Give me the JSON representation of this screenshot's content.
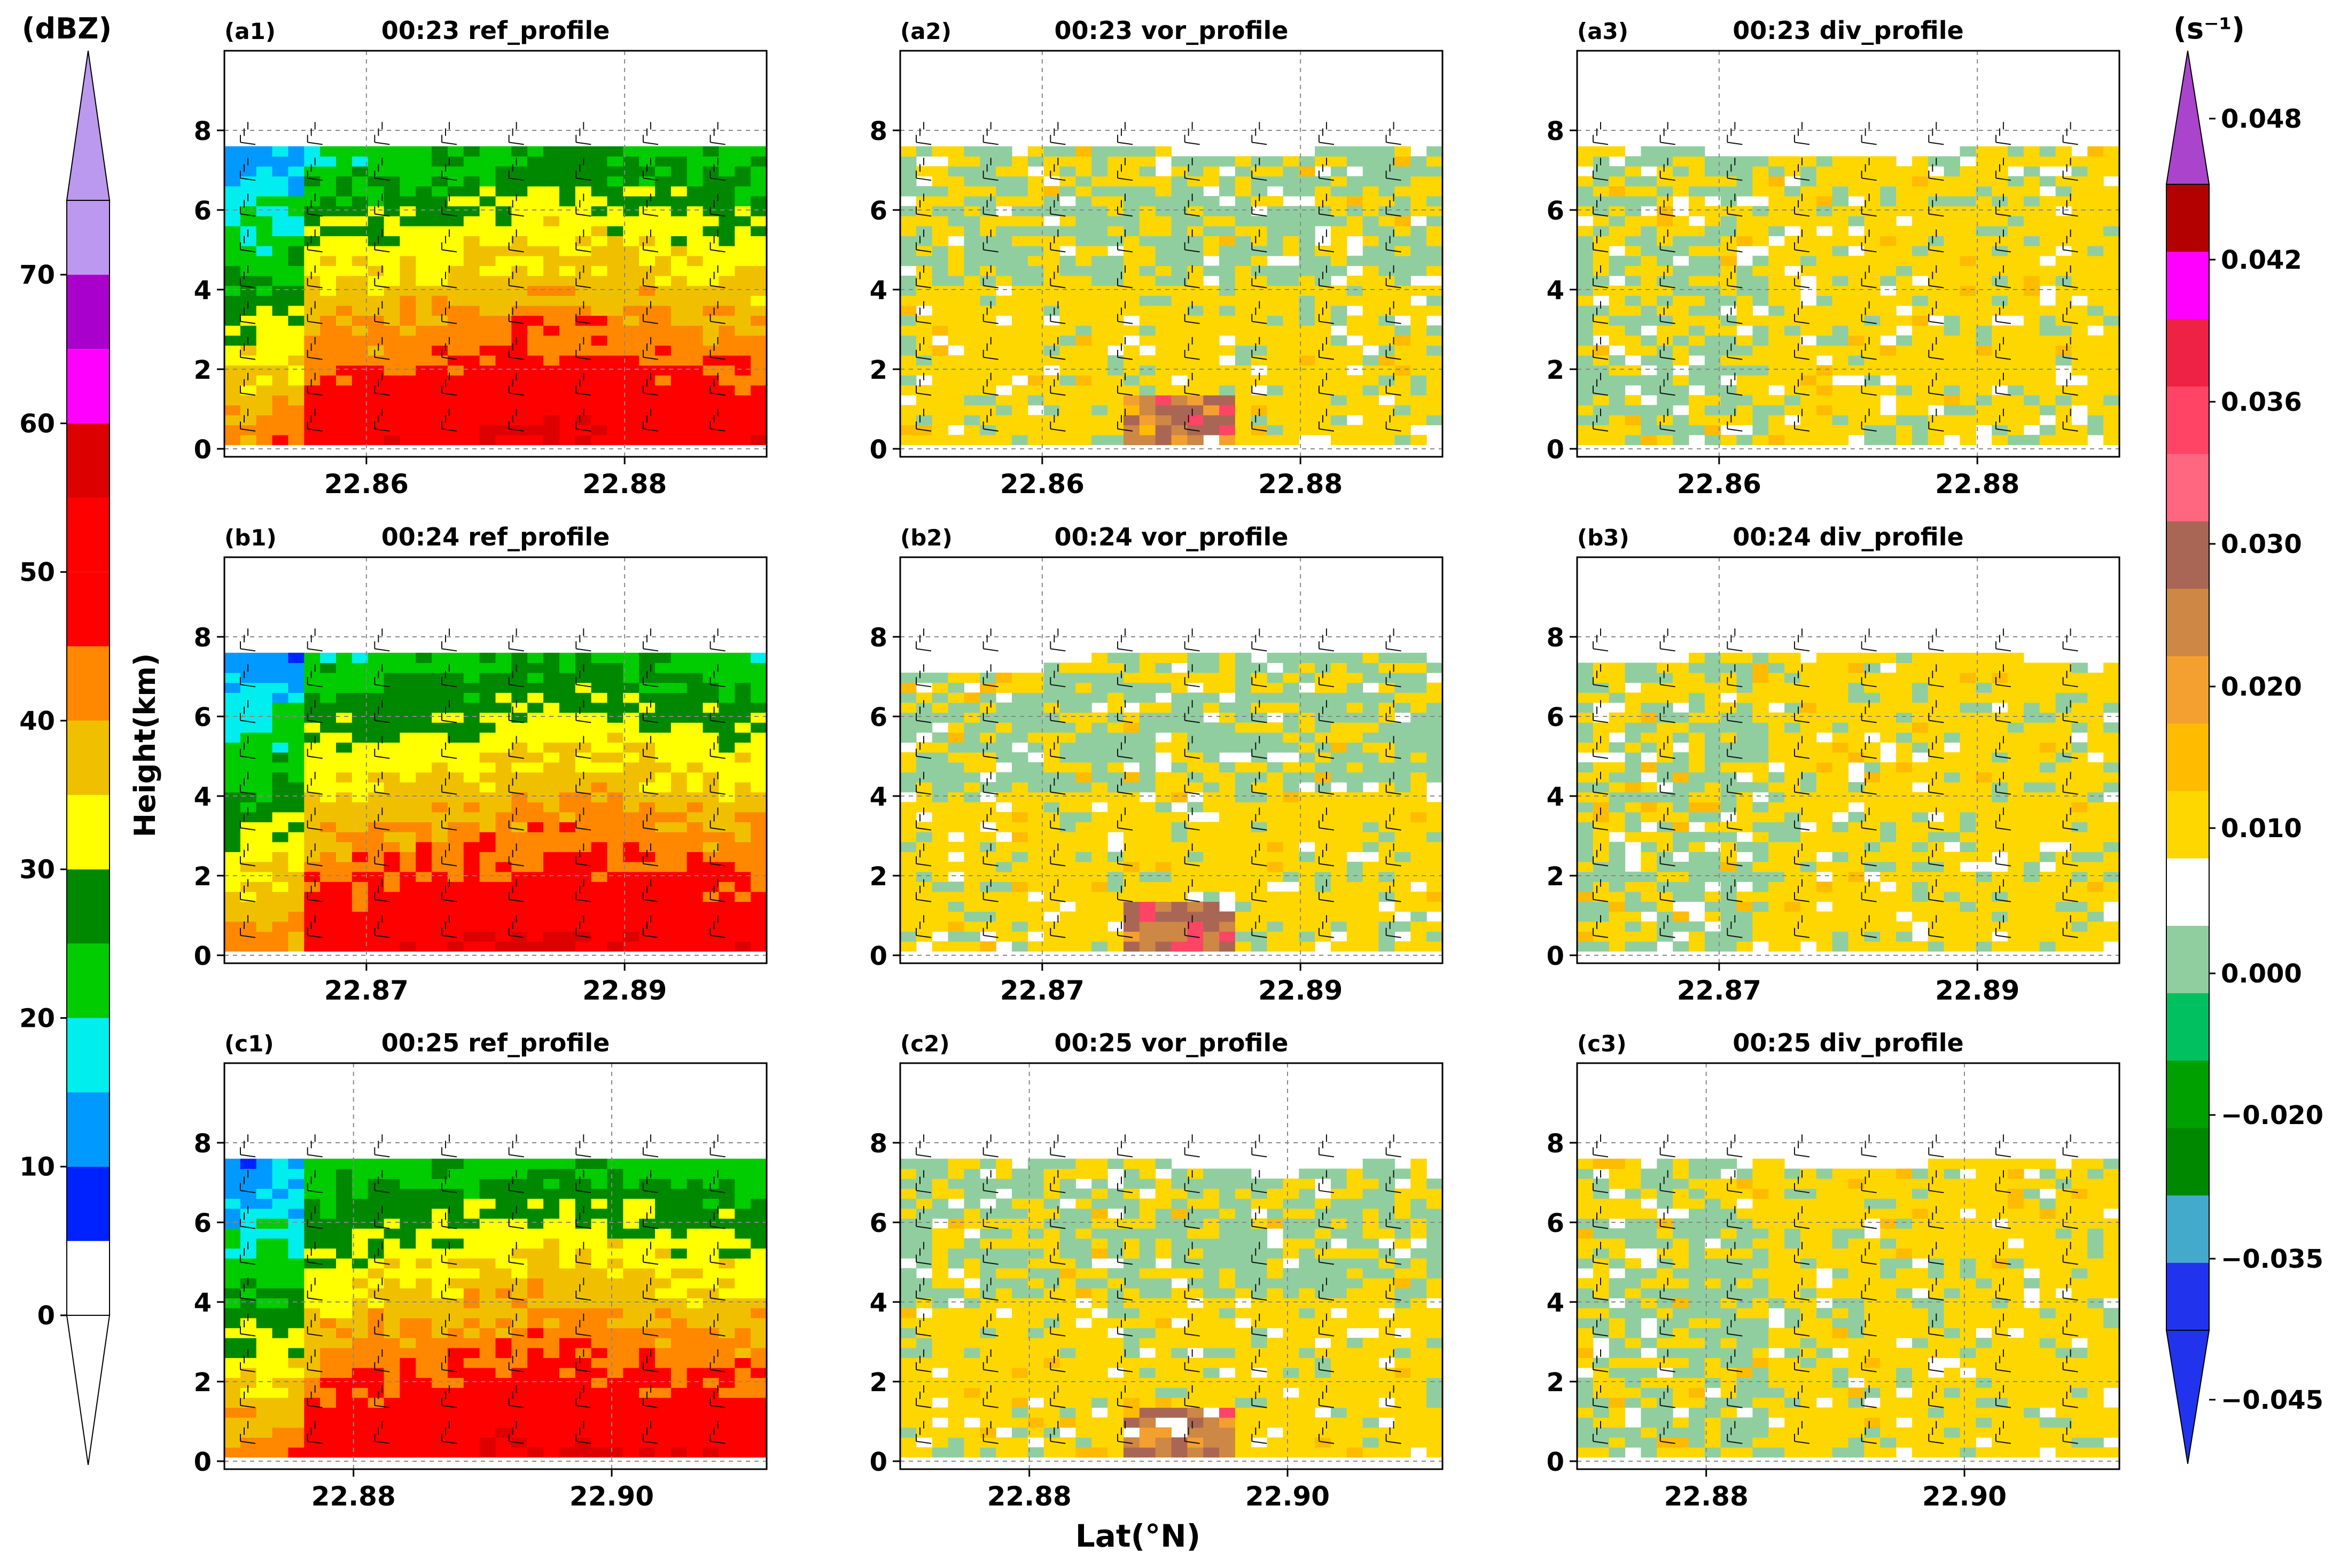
{
  "figure": {
    "left_colorbar_unit": "(dBZ)",
    "right_colorbar_unit": "(s⁻¹)",
    "ylabel": "Height(km)",
    "xlabel": "Lat(°N)"
  },
  "left_colorbar": {
    "tick_labels": [
      "0",
      "10",
      "20",
      "30",
      "40",
      "50",
      "60",
      "70"
    ],
    "tick_values": [
      0,
      10,
      20,
      30,
      40,
      50,
      60,
      70
    ],
    "range": [
      0,
      75
    ],
    "bounds": [
      0,
      5,
      10,
      15,
      20,
      25,
      30,
      35,
      40,
      45,
      50,
      55,
      60,
      65,
      70,
      75
    ],
    "colors": [
      "#ffffff",
      "#0022ff",
      "#0099ff",
      "#00eeee",
      "#00cc00",
      "#008800",
      "#ffff00",
      "#f0c000",
      "#ff8800",
      "#ff0000",
      "#ff0000",
      "#dd0000",
      "#ff00ff",
      "#aa00cc",
      "#bb99ee"
    ],
    "extend_top_color": "#bb99ee",
    "extend_bottom_color": "#ffffff"
  },
  "right_colorbar": {
    "tick_labels": [
      "0.048",
      "0.042",
      "0.036",
      "0.030",
      "0.020",
      "0.010",
      "0.000",
      "−0.020",
      "−0.035",
      "−0.045"
    ],
    "colors_top_to_bottom": [
      "#b30000",
      "#ff00ff",
      "#ee2244",
      "#ff4466",
      "#ff6680",
      "#aa6655",
      "#cc8844",
      "#f4a030",
      "#ffbb00",
      "#ffd700",
      "#ffffff",
      "#90cea0",
      "#00c060",
      "#00a000",
      "#008800",
      "#44aacc",
      "#2233ee"
    ],
    "extend_top_color": "#aa44cc",
    "extend_bottom_color": "#2233ee"
  },
  "chart_data": [
    {
      "id": "a1",
      "type": "heatmap",
      "panel_label": "(a1)",
      "title": "00:23 ref_profile",
      "field": "ref",
      "x_ticks": [
        "22.86",
        "22.88"
      ],
      "x_tick_values": [
        22.86,
        22.88
      ],
      "xlim": [
        22.849,
        22.891
      ],
      "y_ticks": [
        "0",
        "2",
        "4",
        "6",
        "8"
      ],
      "y_tick_values": [
        0,
        2,
        4,
        6,
        8
      ],
      "ylim": [
        -0.2,
        10
      ]
    },
    {
      "id": "a2",
      "type": "heatmap",
      "panel_label": "(a2)",
      "title": "00:23 vor_profile",
      "field": "vor",
      "x_ticks": [
        "22.86",
        "22.88"
      ],
      "x_tick_values": [
        22.86,
        22.88
      ],
      "xlim": [
        22.849,
        22.891
      ],
      "y_ticks": [
        "0",
        "2",
        "4",
        "6",
        "8"
      ],
      "y_tick_values": [
        0,
        2,
        4,
        6,
        8
      ],
      "ylim": [
        -0.2,
        10
      ]
    },
    {
      "id": "a3",
      "type": "heatmap",
      "panel_label": "(a3)",
      "title": "00:23 div_profile",
      "field": "div",
      "x_ticks": [
        "22.86",
        "22.88"
      ],
      "x_tick_values": [
        22.86,
        22.88
      ],
      "xlim": [
        22.849,
        22.891
      ],
      "y_ticks": [
        "0",
        "2",
        "4",
        "6",
        "8"
      ],
      "y_tick_values": [
        0,
        2,
        4,
        6,
        8
      ],
      "ylim": [
        -0.2,
        10
      ]
    },
    {
      "id": "b1",
      "type": "heatmap",
      "panel_label": "(b1)",
      "title": "00:24 ref_profile",
      "field": "ref",
      "x_ticks": [
        "22.87",
        "22.89"
      ],
      "x_tick_values": [
        22.87,
        22.89
      ],
      "xlim": [
        22.859,
        22.901
      ],
      "y_ticks": [
        "0",
        "2",
        "4",
        "6",
        "8"
      ],
      "y_tick_values": [
        0,
        2,
        4,
        6,
        8
      ],
      "ylim": [
        -0.2,
        10
      ]
    },
    {
      "id": "b2",
      "type": "heatmap",
      "panel_label": "(b2)",
      "title": "00:24 vor_profile",
      "field": "vor",
      "x_ticks": [
        "22.87",
        "22.89"
      ],
      "x_tick_values": [
        22.87,
        22.89
      ],
      "xlim": [
        22.859,
        22.901
      ],
      "y_ticks": [
        "0",
        "2",
        "4",
        "6",
        "8"
      ],
      "y_tick_values": [
        0,
        2,
        4,
        6,
        8
      ],
      "ylim": [
        -0.2,
        10
      ]
    },
    {
      "id": "b3",
      "type": "heatmap",
      "panel_label": "(b3)",
      "title": "00:24 div_profile",
      "field": "div",
      "x_ticks": [
        "22.87",
        "22.89"
      ],
      "x_tick_values": [
        22.87,
        22.89
      ],
      "xlim": [
        22.859,
        22.901
      ],
      "y_ticks": [
        "0",
        "2",
        "4",
        "6",
        "8"
      ],
      "y_tick_values": [
        0,
        2,
        4,
        6,
        8
      ],
      "ylim": [
        -0.2,
        10
      ]
    },
    {
      "id": "c1",
      "type": "heatmap",
      "panel_label": "(c1)",
      "title": "00:25 ref_profile",
      "field": "ref",
      "x_ticks": [
        "22.88",
        "22.90"
      ],
      "x_tick_values": [
        22.88,
        22.9
      ],
      "xlim": [
        22.87,
        22.912
      ],
      "y_ticks": [
        "0",
        "2",
        "4",
        "6",
        "8"
      ],
      "y_tick_values": [
        0,
        2,
        4,
        6,
        8
      ],
      "ylim": [
        -0.2,
        10
      ]
    },
    {
      "id": "c2",
      "type": "heatmap",
      "panel_label": "(c2)",
      "title": "00:25 vor_profile",
      "field": "vor",
      "x_ticks": [
        "22.88",
        "22.90"
      ],
      "x_tick_values": [
        22.88,
        22.9
      ],
      "xlim": [
        22.87,
        22.912
      ],
      "y_ticks": [
        "0",
        "2",
        "4",
        "6",
        "8"
      ],
      "y_tick_values": [
        0,
        2,
        4,
        6,
        8
      ],
      "ylim": [
        -0.2,
        10
      ]
    },
    {
      "id": "c3",
      "type": "heatmap",
      "panel_label": "(c3)",
      "title": "00:25 div_profile",
      "field": "div",
      "x_ticks": [
        "22.88",
        "22.90"
      ],
      "x_tick_values": [
        22.88,
        22.9
      ],
      "xlim": [
        22.87,
        22.912
      ],
      "y_ticks": [
        "0",
        "2",
        "4",
        "6",
        "8"
      ],
      "y_tick_values": [
        0,
        2,
        4,
        6,
        8
      ],
      "ylim": [
        -0.2,
        10
      ]
    }
  ]
}
